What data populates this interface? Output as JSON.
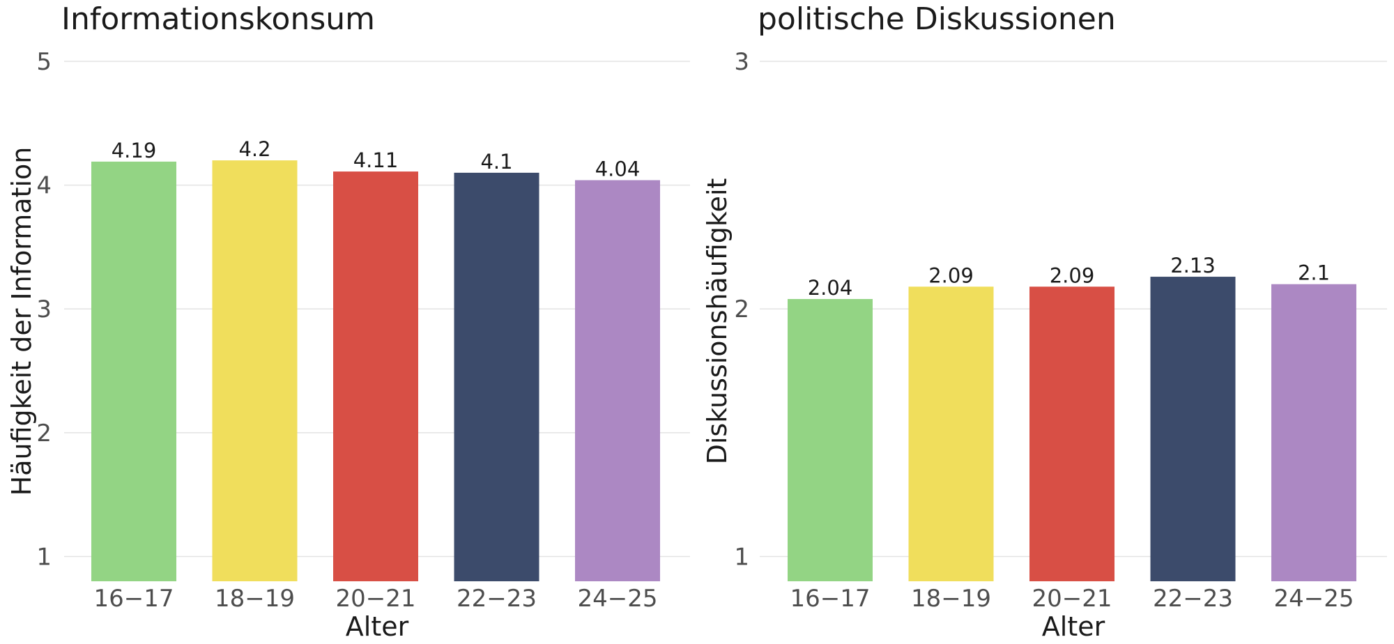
{
  "chart_data": [
    {
      "type": "bar",
      "title": "Informationskonsum",
      "xlabel": "Alter",
      "ylabel": "Häufigkeit der Information",
      "categories": [
        "16−17",
        "18−19",
        "20−21",
        "22−23",
        "24−25"
      ],
      "values": [
        4.19,
        4.2,
        4.11,
        4.1,
        4.04
      ],
      "value_labels": [
        "4.19",
        "4.2",
        "4.11",
        "4.1",
        "4.04"
      ],
      "colors": [
        "#93d484",
        "#f0de5c",
        "#d84f45",
        "#3c4b6b",
        "#ac88c3"
      ],
      "yticks": [
        1,
        2,
        3,
        4,
        5
      ],
      "ylim": [
        0.8,
        5
      ],
      "grid": true,
      "legend": "none"
    },
    {
      "type": "bar",
      "title": "politische Diskussionen",
      "xlabel": "Alter",
      "ylabel": "Diskussionshäufigkeit",
      "categories": [
        "16−17",
        "18−19",
        "20−21",
        "22−23",
        "24−25"
      ],
      "values": [
        2.04,
        2.09,
        2.09,
        2.13,
        2.1
      ],
      "value_labels": [
        "2.04",
        "2.09",
        "2.09",
        "2.13",
        "2.1"
      ],
      "colors": [
        "#93d484",
        "#f0de5c",
        "#d84f45",
        "#3c4b6b",
        "#ac88c3"
      ],
      "yticks": [
        1,
        2,
        3
      ],
      "ylim": [
        0.9,
        3
      ],
      "grid": true,
      "legend": "none"
    }
  ]
}
